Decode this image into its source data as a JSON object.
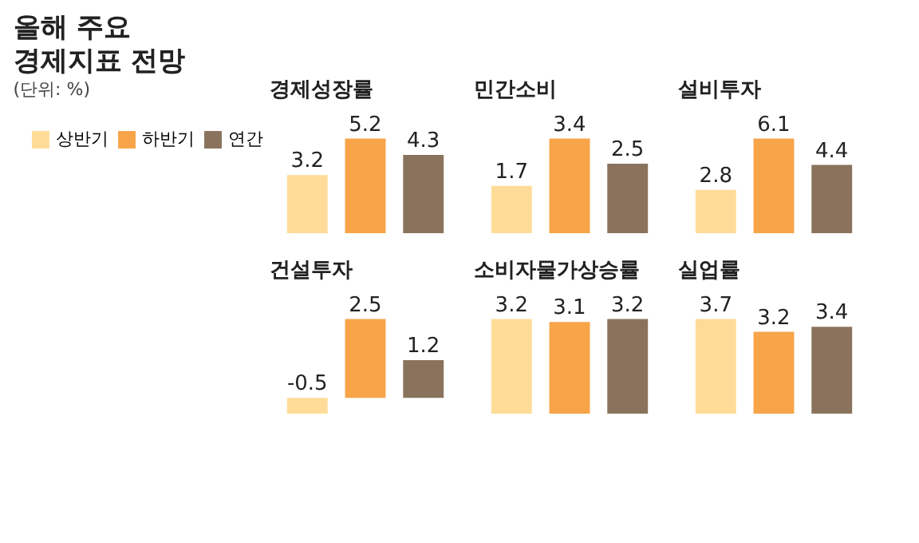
{
  "chart_data": [
    {
      "type": "other",
      "title": "올해 주요 경제지표 전망",
      "subtitle": "(단위: %)"
    },
    {
      "type": "bar",
      "title": "경제성장률",
      "categories": [
        null
      ],
      "data_labels": true,
      "legend": "left",
      "series": [
        {
          "name": "상반기",
          "color": "#fedc98",
          "values": [
            3.2
          ]
        },
        {
          "name": "하반기",
          "color": "#f8a448",
          "values": [
            5.2
          ]
        },
        {
          "name": "연간",
          "color": "#8a735d",
          "values": [
            4.3
          ]
        }
      ]
    },
    {
      "type": "bar",
      "title": "민간소비",
      "categories": [
        null
      ],
      "data_labels": true,
      "series": [
        {
          "color": "#fedc98",
          "values": [
            1.7
          ]
        },
        {
          "color": "#f8a448",
          "values": [
            3.4
          ]
        },
        {
          "color": "#8a735d",
          "values": [
            2.5
          ]
        }
      ]
    },
    {
      "type": "bar",
      "title": "설비투자",
      "categories": [
        null
      ],
      "data_labels": true,
      "series": [
        {
          "color": "#fedc98",
          "values": [
            2.8
          ]
        },
        {
          "color": "#f8a448",
          "values": [
            6.1
          ]
        },
        {
          "color": "#8a735d",
          "values": [
            4.4
          ]
        }
      ]
    },
    {
      "type": "bar",
      "title": "건설투자",
      "categories": [
        null
      ],
      "data_labels": true,
      "series": [
        {
          "color": "#fedc98",
          "values": [
            -0.5
          ]
        },
        {
          "color": "#f8a448",
          "values": [
            2.5
          ]
        },
        {
          "color": "#8a735d",
          "values": [
            1.2
          ]
        }
      ]
    },
    {
      "type": "bar",
      "title": "소비자물가상승률",
      "categories": [
        null
      ],
      "data_labels": true,
      "series": [
        {
          "color": "#fedc98",
          "values": [
            3.2
          ]
        },
        {
          "color": "#f8a448",
          "values": [
            3.1
          ]
        },
        {
          "color": "#8a735d",
          "values": [
            3.2
          ]
        }
      ]
    },
    {
      "type": "bar",
      "title": "실업률",
      "categories": [
        null
      ],
      "data_labels": true,
      "series": [
        {
          "color": "#fedc98",
          "values": [
            3.7
          ]
        },
        {
          "color": "#f8a448",
          "values": [
            3.2
          ]
        },
        {
          "color": "#8a735d",
          "values": [
            3.4
          ]
        }
      ]
    }
  ]
}
